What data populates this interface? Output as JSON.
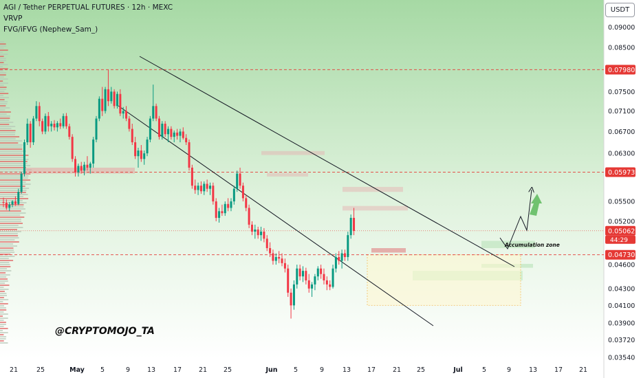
{
  "header": {
    "title": "AGI / Tether PERPETUAL FUTURES · 12h · MEXC",
    "indicator1": "VRVP",
    "indicator2": "FVG/iFVG (Nephew_Sam_)"
  },
  "currency": "USDT",
  "watermark": "@CRYPTOMOJO_TA",
  "annotation": "Accumulation zone",
  "colors": {
    "bg_top": "#a6d9a4",
    "bg_bottom": "#ffffff",
    "up": "#089981",
    "down": "#f23645",
    "level": "#e53935",
    "channel": "#131722"
  },
  "chart_data": {
    "type": "candlestick",
    "title": "AGI / Tether PERPETUAL FUTURES · 12h · MEXC",
    "ylim": [
      0.0354,
      0.0913
    ],
    "y_scale": "log",
    "grid": false,
    "y_ticks": [
      "0.09000",
      "0.08500",
      "0.07980",
      "0.07500",
      "0.07100",
      "0.06700",
      "0.06300",
      "0.05973",
      "0.05500",
      "0.05200",
      "0.05062",
      "0.04730",
      "0.04600",
      "0.04300",
      "0.04100",
      "0.03900",
      "0.03720",
      "0.03540"
    ],
    "x_ticks": [
      "21",
      "25",
      "May",
      "5",
      "9",
      "13",
      "17",
      "21",
      "25",
      "Jun",
      "5",
      "9",
      "13",
      "17",
      "21",
      "25",
      "Jul",
      "5",
      "9",
      "13",
      "17",
      "21"
    ],
    "levels": [
      {
        "value": 0.0798,
        "label": "0.07980"
      },
      {
        "value": 0.05973,
        "label": "0.05973"
      },
      {
        "value": 0.0473,
        "label": "0.04730"
      }
    ],
    "current_price": {
      "value": 0.05062,
      "label": "0.05062",
      "countdown": "44:29"
    },
    "candles": [
      [
        0.0549,
        0.0556,
        0.0541,
        0.0548
      ],
      [
        0.0548,
        0.0553,
        0.0537,
        0.054
      ],
      [
        0.054,
        0.0549,
        0.0535,
        0.0545
      ],
      [
        0.0545,
        0.0552,
        0.0541,
        0.055
      ],
      [
        0.055,
        0.0558,
        0.0543,
        0.0546
      ],
      [
        0.0546,
        0.057,
        0.0544,
        0.0565
      ],
      [
        0.0565,
        0.0598,
        0.0562,
        0.0595
      ],
      [
        0.0595,
        0.0655,
        0.059,
        0.065
      ],
      [
        0.065,
        0.0695,
        0.0645,
        0.0685
      ],
      [
        0.0685,
        0.069,
        0.064,
        0.065
      ],
      [
        0.065,
        0.07,
        0.0645,
        0.0695
      ],
      [
        0.0695,
        0.073,
        0.069,
        0.072
      ],
      [
        0.072,
        0.0728,
        0.068,
        0.069
      ],
      [
        0.069,
        0.0695,
        0.0665,
        0.067
      ],
      [
        0.067,
        0.0705,
        0.0665,
        0.07
      ],
      [
        0.07,
        0.0708,
        0.067,
        0.068
      ],
      [
        0.068,
        0.069,
        0.067,
        0.0685
      ],
      [
        0.0685,
        0.0692,
        0.0672,
        0.0678
      ],
      [
        0.0678,
        0.069,
        0.067,
        0.0686
      ],
      [
        0.0686,
        0.0695,
        0.0675,
        0.068
      ],
      [
        0.068,
        0.0705,
        0.0676,
        0.07
      ],
      [
        0.07,
        0.0706,
        0.0675,
        0.068
      ],
      [
        0.068,
        0.0685,
        0.0655,
        0.066
      ],
      [
        0.066,
        0.0665,
        0.0615,
        0.062
      ],
      [
        0.062,
        0.0625,
        0.059,
        0.0597
      ],
      [
        0.0597,
        0.0612,
        0.059,
        0.0608
      ],
      [
        0.0608,
        0.0615,
        0.0595,
        0.06
      ],
      [
        0.06,
        0.0615,
        0.0592,
        0.061
      ],
      [
        0.061,
        0.0625,
        0.06,
        0.0605
      ],
      [
        0.0605,
        0.0615,
        0.0595,
        0.0612
      ],
      [
        0.0612,
        0.066,
        0.0605,
        0.0655
      ],
      [
        0.0655,
        0.07,
        0.065,
        0.0695
      ],
      [
        0.0695,
        0.074,
        0.069,
        0.0735
      ],
      [
        0.0735,
        0.076,
        0.07,
        0.071
      ],
      [
        0.071,
        0.076,
        0.0705,
        0.0755
      ],
      [
        0.0755,
        0.0798,
        0.072,
        0.073
      ],
      [
        0.073,
        0.076,
        0.0725,
        0.075
      ],
      [
        0.075,
        0.0755,
        0.0715,
        0.072
      ],
      [
        0.072,
        0.075,
        0.0715,
        0.0745
      ],
      [
        0.0745,
        0.0755,
        0.07,
        0.0705
      ],
      [
        0.0705,
        0.0718,
        0.0695,
        0.071
      ],
      [
        0.071,
        0.072,
        0.069,
        0.0695
      ],
      [
        0.0695,
        0.07,
        0.067,
        0.0675
      ],
      [
        0.0675,
        0.0685,
        0.0645,
        0.065
      ],
      [
        0.065,
        0.066,
        0.062,
        0.0625
      ],
      [
        0.0625,
        0.064,
        0.0605,
        0.0635
      ],
      [
        0.0635,
        0.0645,
        0.0615,
        0.062
      ],
      [
        0.062,
        0.0635,
        0.061,
        0.063
      ],
      [
        0.063,
        0.066,
        0.0625,
        0.0655
      ],
      [
        0.0655,
        0.07,
        0.065,
        0.0695
      ],
      [
        0.0695,
        0.0765,
        0.069,
        0.072
      ],
      [
        0.072,
        0.0725,
        0.069,
        0.0695
      ],
      [
        0.0695,
        0.07,
        0.0655,
        0.066
      ],
      [
        0.066,
        0.069,
        0.0655,
        0.0685
      ],
      [
        0.0685,
        0.069,
        0.066,
        0.0665
      ],
      [
        0.0665,
        0.068,
        0.065,
        0.0675
      ],
      [
        0.0675,
        0.068,
        0.0655,
        0.066
      ],
      [
        0.066,
        0.0672,
        0.065,
        0.0668
      ],
      [
        0.0668,
        0.0675,
        0.0655,
        0.0662
      ],
      [
        0.0662,
        0.0675,
        0.065,
        0.067
      ],
      [
        0.067,
        0.0678,
        0.0655,
        0.0658
      ],
      [
        0.0658,
        0.0665,
        0.0645,
        0.065
      ],
      [
        0.065,
        0.0655,
        0.06,
        0.0605
      ],
      [
        0.0605,
        0.061,
        0.057,
        0.0575
      ],
      [
        0.0575,
        0.0585,
        0.0562,
        0.0568
      ],
      [
        0.0568,
        0.058,
        0.056,
        0.0575
      ],
      [
        0.0575,
        0.0582,
        0.0562,
        0.0566
      ],
      [
        0.0566,
        0.0582,
        0.056,
        0.0578
      ],
      [
        0.0578,
        0.0585,
        0.0565,
        0.057
      ],
      [
        0.057,
        0.058,
        0.056,
        0.0575
      ],
      [
        0.0575,
        0.058,
        0.0545,
        0.055
      ],
      [
        0.055,
        0.0555,
        0.052,
        0.0525
      ],
      [
        0.0525,
        0.054,
        0.0518,
        0.0535
      ],
      [
        0.0535,
        0.0545,
        0.0528,
        0.0532
      ],
      [
        0.0532,
        0.055,
        0.0528,
        0.0546
      ],
      [
        0.0546,
        0.0555,
        0.0535,
        0.054
      ],
      [
        0.054,
        0.0555,
        0.0535,
        0.055
      ],
      [
        0.055,
        0.0575,
        0.0545,
        0.057
      ],
      [
        0.057,
        0.06,
        0.0565,
        0.0595
      ],
      [
        0.0595,
        0.0605,
        0.057,
        0.0575
      ],
      [
        0.0575,
        0.058,
        0.055,
        0.0555
      ],
      [
        0.0555,
        0.056,
        0.0535,
        0.054
      ],
      [
        0.054,
        0.0545,
        0.051,
        0.0515
      ],
      [
        0.0515,
        0.052,
        0.05,
        0.0505
      ],
      [
        0.0505,
        0.0515,
        0.0495,
        0.0508
      ],
      [
        0.0508,
        0.0512,
        0.0495,
        0.05
      ],
      [
        0.05,
        0.0512,
        0.0492,
        0.0505
      ],
      [
        0.0505,
        0.051,
        0.049,
        0.0495
      ],
      [
        0.0495,
        0.05,
        0.0478,
        0.0482
      ],
      [
        0.0482,
        0.049,
        0.047,
        0.0475
      ],
      [
        0.0475,
        0.048,
        0.046,
        0.0465
      ],
      [
        0.0465,
        0.0475,
        0.046,
        0.047
      ],
      [
        0.047,
        0.0478,
        0.0462,
        0.0468
      ],
      [
        0.0468,
        0.0475,
        0.0458,
        0.0462
      ],
      [
        0.0462,
        0.0468,
        0.045,
        0.0455
      ],
      [
        0.0455,
        0.046,
        0.042,
        0.0425
      ],
      [
        0.0425,
        0.043,
        0.0395,
        0.041
      ],
      [
        0.041,
        0.044,
        0.0405,
        0.0435
      ],
      [
        0.0435,
        0.046,
        0.043,
        0.0455
      ],
      [
        0.0455,
        0.046,
        0.044,
        0.0445
      ],
      [
        0.0445,
        0.0458,
        0.0438,
        0.0452
      ],
      [
        0.0452,
        0.0456,
        0.0435,
        0.044
      ],
      [
        0.044,
        0.0448,
        0.0425,
        0.043
      ],
      [
        0.043,
        0.0438,
        0.042,
        0.0435
      ],
      [
        0.0435,
        0.0448,
        0.0428,
        0.0445
      ],
      [
        0.0445,
        0.0458,
        0.044,
        0.0455
      ],
      [
        0.0455,
        0.046,
        0.0442,
        0.0448
      ],
      [
        0.0448,
        0.0455,
        0.0435,
        0.044
      ],
      [
        0.044,
        0.0445,
        0.0428,
        0.0435
      ],
      [
        0.0435,
        0.044,
        0.0428,
        0.0432
      ],
      [
        0.0432,
        0.046,
        0.043,
        0.0455
      ],
      [
        0.0455,
        0.0475,
        0.045,
        0.047
      ],
      [
        0.047,
        0.0478,
        0.046,
        0.0465
      ],
      [
        0.0465,
        0.048,
        0.0455,
        0.0475
      ],
      [
        0.0475,
        0.048,
        0.0465,
        0.047
      ],
      [
        0.047,
        0.0505,
        0.0465,
        0.05
      ],
      [
        0.05,
        0.053,
        0.0495,
        0.0525
      ],
      [
        0.0525,
        0.054,
        0.05,
        0.0506
      ]
    ]
  }
}
